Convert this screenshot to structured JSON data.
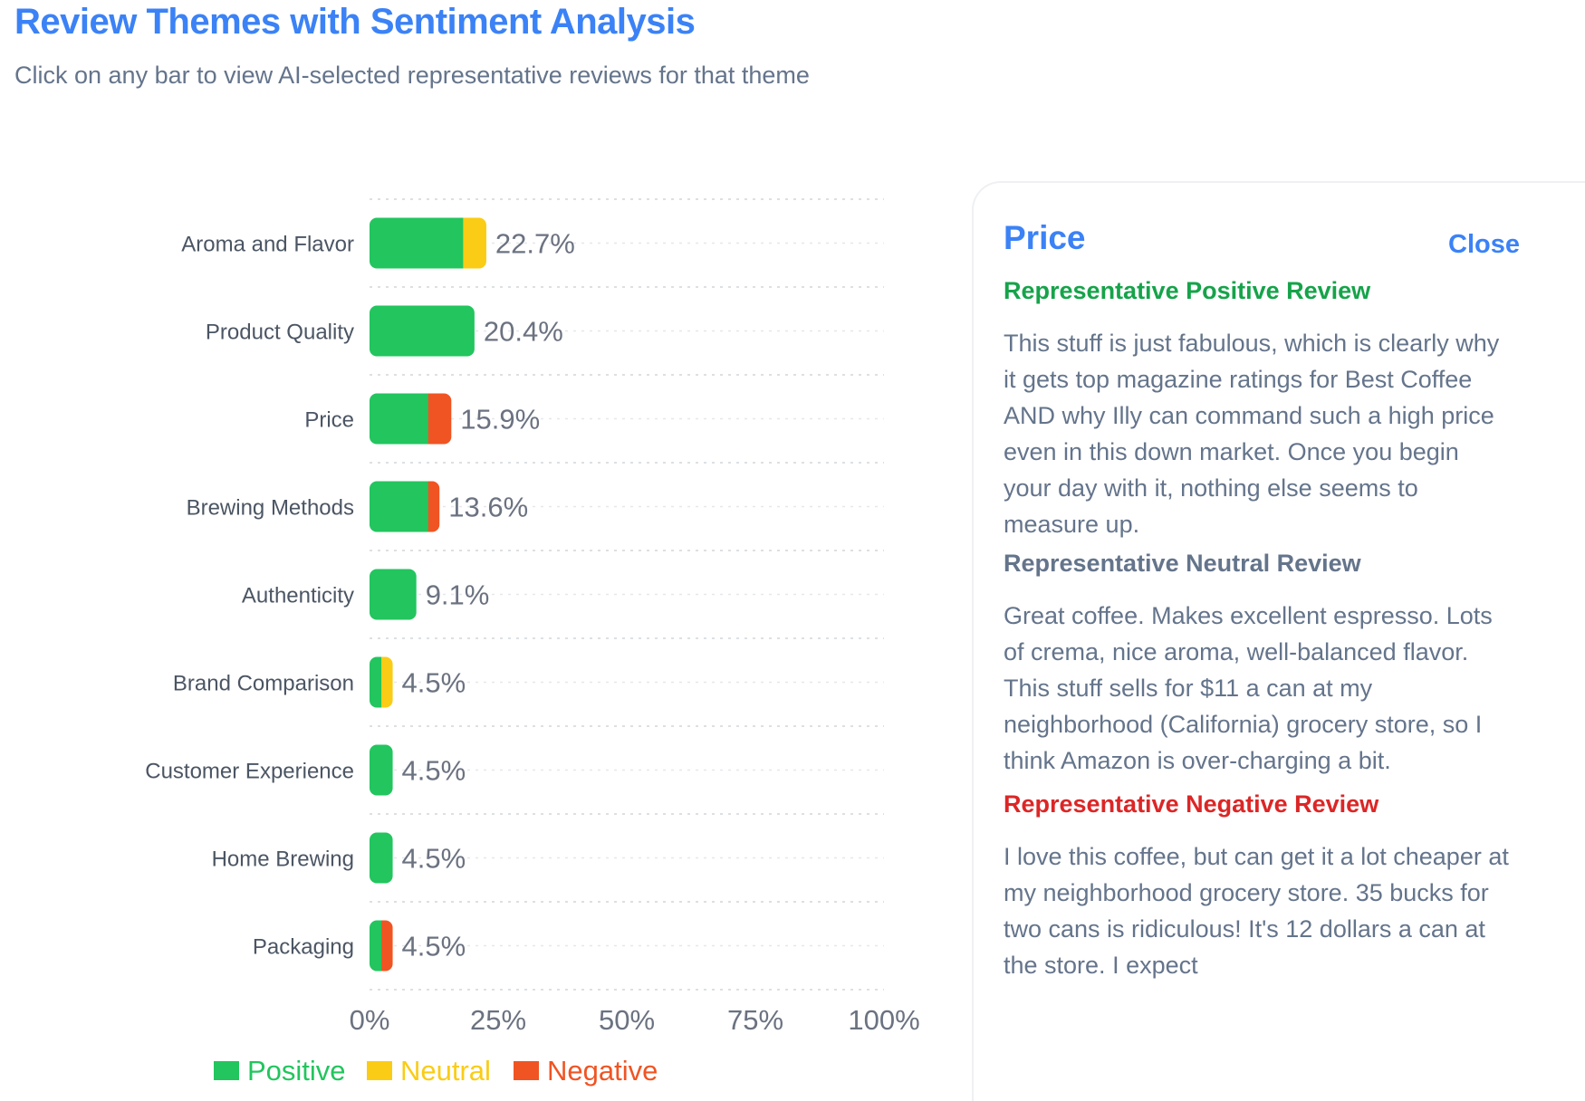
{
  "header": {
    "title": "Review Themes with Sentiment Analysis",
    "subtitle": "Click on any bar to view AI-selected representative reviews for that theme"
  },
  "colors": {
    "positive": "#22c55e",
    "neutral": "#facc15",
    "negative": "#f05423",
    "accent": "#3b82f6"
  },
  "chart_data": {
    "type": "bar",
    "orientation": "horizontal",
    "stacked": true,
    "categories": [
      "Aroma and Flavor",
      "Product Quality",
      "Price",
      "Brewing Methods",
      "Authenticity",
      "Brand Comparison",
      "Customer Experience",
      "Home Brewing",
      "Packaging"
    ],
    "series": [
      {
        "name": "Positive",
        "values": [
          18.2,
          20.4,
          11.4,
          11.4,
          9.1,
          2.3,
          4.5,
          4.5,
          2.3
        ]
      },
      {
        "name": "Neutral",
        "values": [
          4.5,
          0,
          0,
          0,
          0,
          2.2,
          0,
          0,
          0
        ]
      },
      {
        "name": "Negative",
        "values": [
          0,
          0,
          4.5,
          2.2,
          0,
          0,
          0,
          0,
          2.2
        ]
      }
    ],
    "totals": [
      "22.7%",
      "20.4%",
      "15.9%",
      "13.6%",
      "9.1%",
      "4.5%",
      "4.5%",
      "4.5%",
      "4.5%"
    ],
    "xticks": [
      "0%",
      "25%",
      "50%",
      "75%",
      "100%"
    ],
    "xlim": [
      0,
      100
    ],
    "grid": "dotted vertical",
    "legend_position": "bottom"
  },
  "panel": {
    "title": "Price",
    "close_label": "Close",
    "positive": {
      "heading": "Representative Positive Review",
      "text": "This stuff is just fabulous, which is clearly why it gets top magazine ratings for Best Coffee AND why Illy can command such a high price even in this down market. Once you begin your day with it, nothing else seems to measure up."
    },
    "neutral": {
      "heading": "Representative Neutral Review",
      "text": "Great coffee. Makes excellent espresso. Lots of crema, nice aroma, well-balanced flavor. This stuff sells for $11 a can at my neighborhood (California) grocery store, so I think Amazon is over-charging a bit."
    },
    "negative": {
      "heading": "Representative Negative Review",
      "text": "I love this coffee, but can get it a lot cheaper at my neighborhood grocery store. 35 bucks for two cans is ridiculous! It's 12 dollars a can at the store. I expect"
    }
  }
}
